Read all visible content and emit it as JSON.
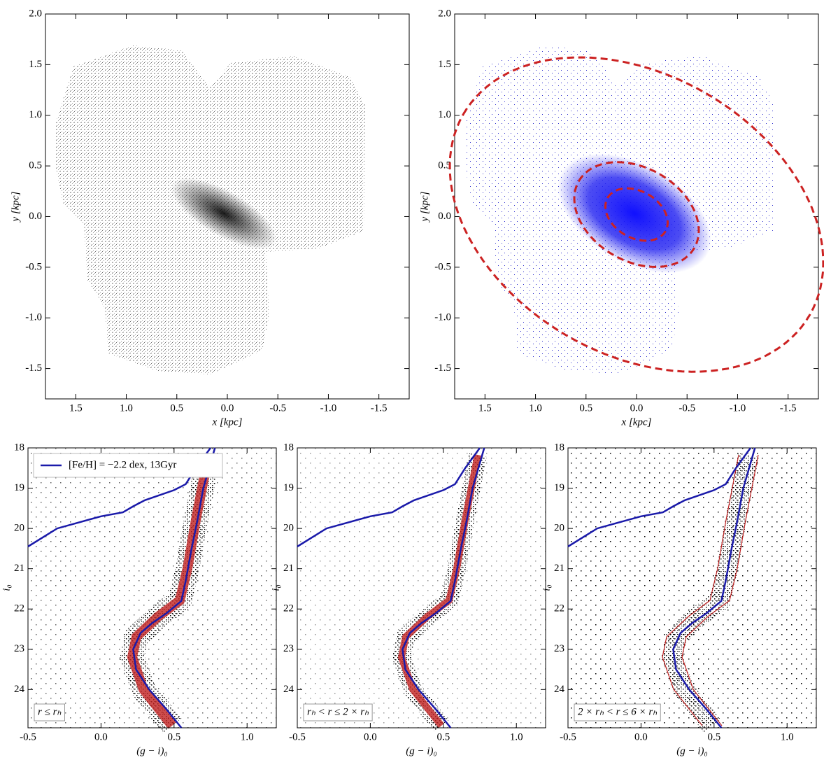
{
  "chart_data": [
    {
      "type": "scatter",
      "xlabel": "x [kpc]",
      "ylabel": "y [kpc]",
      "xlim": [
        1.8,
        -1.8
      ],
      "ylim": [
        -1.8,
        2.0
      ],
      "xticks": [
        1.5,
        {
          "value": 1.0,
          "label": "1.0"
        },
        0.5,
        {
          "value": 0.0,
          "label": "0.0"
        },
        -0.5,
        {
          "value": -1.0,
          "label": "-1.0"
        },
        -1.5
      ],
      "yticks": [
        {
          "value": 2.0,
          "label": "2.0"
        },
        1.5,
        {
          "value": 1.0,
          "label": "1.0"
        },
        0.5,
        {
          "value": 0.0,
          "label": "0.0"
        },
        -0.5,
        {
          "value": -1.0,
          "label": "-1.0"
        },
        -1.5
      ]
    },
    {
      "type": "scatter",
      "xlabel": "x [kpc]",
      "ylabel": "y [kpc]",
      "xlim": [
        1.8,
        -1.8
      ],
      "ylim": [
        -1.8,
        2.0
      ],
      "xticks": [
        1.5,
        {
          "value": 1.0,
          "label": "1.0"
        },
        0.5,
        {
          "value": 0.0,
          "label": "0.0"
        },
        -0.5,
        {
          "value": -1.0,
          "label": "-1.0"
        },
        -1.5
      ],
      "yticks": [
        {
          "value": 2.0,
          "label": "2.0"
        },
        1.5,
        {
          "value": 1.0,
          "label": "1.0"
        },
        0.5,
        {
          "value": 0.0,
          "label": "0.0"
        },
        -0.5,
        {
          "value": -1.0,
          "label": "-1.0"
        },
        -1.5
      ],
      "ellipses": {
        "color": "#cc2222",
        "center": [
          0,
          0.02
        ],
        "angle": 30,
        "semi_major": [
          0.33,
          0.66,
          1.98
        ],
        "semi_minor": [
          0.23,
          0.46,
          1.38
        ]
      }
    },
    {
      "type": "line",
      "xlabel": "(g − i)₀",
      "ylabel": "i₀",
      "label": "r ≤ rₕ",
      "xlim": [
        -0.5,
        1.2
      ],
      "ylim": [
        24.95,
        18
      ],
      "xticks": [
        -0.5,
        {
          "value": 0.0,
          "label": "0.0"
        },
        0.5,
        {
          "value": 1.0,
          "label": "1.0"
        }
      ],
      "yticks": [
        18,
        19,
        20,
        21,
        22,
        23,
        24
      ],
      "series": [
        {
          "name": "[Fe/H] = −2.2 dex, 13Gyr",
          "color": "#1a1aaa",
          "x": [
            -0.5,
            -0.3,
            0.0,
            0.15,
            0.22,
            0.3,
            0.5,
            0.58,
            0.65,
            0.75,
            null,
            0.78,
            0.7,
            0.66,
            0.62,
            0.58,
            0.55,
            0.45,
            0.35,
            0.27,
            0.22,
            0.24,
            0.33,
            0.45,
            0.55
          ],
          "values": [
            20.45,
            20.0,
            19.7,
            19.6,
            19.45,
            19.3,
            19.05,
            18.9,
            18.5,
            18.0,
            null,
            18.0,
            19.0,
            19.8,
            20.5,
            21.3,
            21.8,
            22.1,
            22.35,
            22.6,
            23.0,
            23.5,
            24.0,
            24.5,
            24.95
          ]
        }
      ]
    },
    {
      "type": "line",
      "xlabel": "(g − i)₀",
      "ylabel": "i₀",
      "label": "rₕ < r ≤ 2 × rₕ",
      "xlim": [
        -0.5,
        1.2
      ],
      "ylim": [
        24.95,
        18
      ],
      "xticks": [
        -0.5,
        {
          "value": 0.0,
          "label": "0.0"
        },
        0.5,
        {
          "value": 1.0,
          "label": "1.0"
        }
      ],
      "yticks": [
        18,
        19,
        20,
        21,
        22,
        23,
        24
      ],
      "series": [
        {
          "color": "#1a1aaa",
          "x": [
            -0.5,
            -0.3,
            0.0,
            0.15,
            0.22,
            0.3,
            0.5,
            0.58,
            0.65,
            0.75,
            null,
            0.78,
            0.7,
            0.66,
            0.62,
            0.58,
            0.55,
            0.45,
            0.35,
            0.27,
            0.22,
            0.24,
            0.33,
            0.45,
            0.55
          ],
          "values": [
            20.45,
            20.0,
            19.7,
            19.6,
            19.45,
            19.3,
            19.05,
            18.9,
            18.5,
            18.0,
            null,
            18.0,
            19.0,
            19.8,
            20.5,
            21.3,
            21.8,
            22.1,
            22.35,
            22.6,
            23.0,
            23.5,
            24.0,
            24.5,
            24.95
          ]
        }
      ]
    },
    {
      "type": "line",
      "xlabel": "(g − i)₀",
      "ylabel": "i₀",
      "label": "2 × rₕ < r ≤ 6 × rₕ",
      "xlim": [
        -0.5,
        1.2
      ],
      "ylim": [
        24.95,
        18
      ],
      "xticks": [
        -0.5,
        {
          "value": 0.0,
          "label": "0.0"
        },
        0.5,
        {
          "value": 1.0,
          "label": "1.0"
        }
      ],
      "yticks": [
        18,
        19,
        20,
        21,
        22,
        23,
        24
      ],
      "series": [
        {
          "color": "#1a1aaa",
          "x": [
            -0.5,
            -0.3,
            0.0,
            0.15,
            0.22,
            0.3,
            0.5,
            0.58,
            0.65,
            0.75,
            null,
            0.78,
            0.7,
            0.66,
            0.62,
            0.58,
            0.55,
            0.45,
            0.35,
            0.27,
            0.22,
            0.24,
            0.33,
            0.45,
            0.55
          ],
          "values": [
            20.45,
            20.0,
            19.7,
            19.6,
            19.45,
            19.3,
            19.05,
            18.9,
            18.5,
            18.0,
            null,
            18.0,
            19.0,
            19.8,
            20.5,
            21.3,
            21.8,
            22.1,
            22.35,
            22.6,
            23.0,
            23.5,
            24.0,
            24.5,
            24.95
          ]
        }
      ]
    }
  ]
}
